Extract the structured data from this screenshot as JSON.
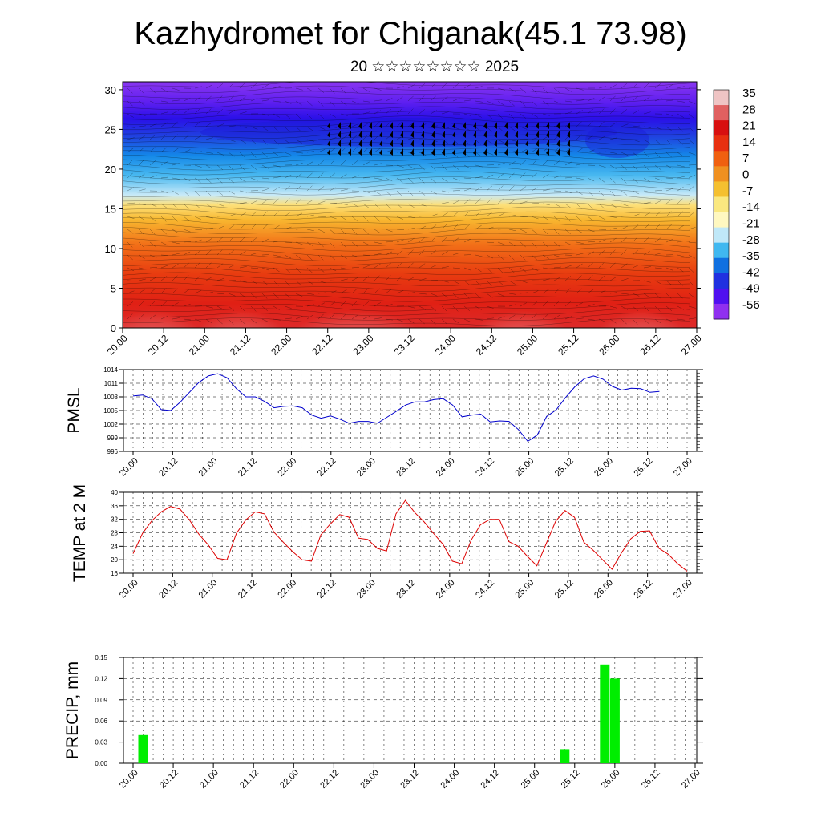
{
  "title": "Kazhydromet for Chiganak(45.1 73.98)",
  "subtitle": "20 ☆☆☆☆☆☆☆☆ 2025",
  "colors": {
    "pmsl_line": "#0000cc",
    "temp_line": "#dd0000",
    "precip_bar": "#00ee00",
    "colorbar": [
      "#efc4c4",
      "#e06060",
      "#d81010",
      "#e83010",
      "#f06010",
      "#f09020",
      "#f5c030",
      "#fae880",
      "#fff8c0",
      "#c0e8f8",
      "#40b8f0",
      "#1070e0",
      "#2030e0",
      "#5010f0",
      "#9030f0"
    ]
  },
  "chart_data": [
    {
      "type": "heatmap",
      "y_ticks": [
        "0",
        "5",
        "10",
        "15",
        "20",
        "25",
        "30"
      ],
      "ylim": [
        0,
        31
      ],
      "x_ticks": [
        "20.00",
        "20.12",
        "21.00",
        "21.12",
        "22.00",
        "22.12",
        "23.00",
        "23.12",
        "24.00",
        "24.12",
        "25.00",
        "25.12",
        "26.00",
        "26.12",
        "27.00"
      ],
      "colorbar_labels": [
        "35",
        "28",
        "21",
        "14",
        "7",
        "0",
        "-7",
        "-14",
        "-21",
        "-28",
        "-35",
        "-42",
        "-49",
        "-56"
      ]
    },
    {
      "type": "line",
      "ylabel": "PMSL",
      "ylim": [
        996,
        1014
      ],
      "y_ticks": [
        "996",
        "999",
        "1002",
        "1005",
        "1008",
        "1011",
        "1014"
      ],
      "x_ticks": [
        "20.00",
        "20.12",
        "21.00",
        "21.12",
        "22.00",
        "22.12",
        "23.00",
        "23.12",
        "24.00",
        "24.12",
        "25.00",
        "25.12",
        "26.00",
        "26.12",
        "27.00"
      ],
      "values": [
        1008.2,
        1008.4,
        1007.6,
        1005.2,
        1005.0,
        1006.8,
        1009.0,
        1011.2,
        1012.6,
        1013.1,
        1012.2,
        1009.8,
        1008.0,
        1008.0,
        1007.0,
        1005.6,
        1005.9,
        1006.0,
        1005.6,
        1004.0,
        1003.3,
        1003.8,
        1003.1,
        1002.2,
        1002.6,
        1002.6,
        1002.2,
        1003.5,
        1004.8,
        1006.2,
        1006.9,
        1006.9,
        1007.4,
        1007.6,
        1006.2,
        1003.6,
        1004.0,
        1004.2,
        1002.5,
        1002.7,
        1002.6,
        1000.8,
        998.2,
        999.6,
        1003.7,
        1005.1,
        1007.8,
        1010.2,
        1012.0,
        1012.6,
        1011.9,
        1010.3,
        1009.5,
        1009.9,
        1009.8,
        1009.0,
        1009.2
      ]
    },
    {
      "type": "line",
      "ylabel": "TEMP at 2 M",
      "ylim": [
        16,
        40
      ],
      "y_ticks": [
        "16",
        "20",
        "24",
        "28",
        "32",
        "36",
        "40"
      ],
      "x_ticks": [
        "20.00",
        "20.12",
        "21.00",
        "21.12",
        "22.00",
        "22.12",
        "23.00",
        "23.12",
        "24.00",
        "24.12",
        "25.00",
        "25.12",
        "26.00",
        "26.12",
        "27.00"
      ],
      "values": [
        21.8,
        27.8,
        31.6,
        34.2,
        35.8,
        35.0,
        31.8,
        27.6,
        24.4,
        20.4,
        20.0,
        27.8,
        31.8,
        34.2,
        33.6,
        28.2,
        25.2,
        22.4,
        20.0,
        19.6,
        27.4,
        30.6,
        33.4,
        32.6,
        26.4,
        26.0,
        23.4,
        22.6,
        33.6,
        37.6,
        34.0,
        31.2,
        27.8,
        24.6,
        19.6,
        18.8,
        25.8,
        30.4,
        32.0,
        32.0,
        25.4,
        24.0,
        21.0,
        18.2,
        24.8,
        31.4,
        34.6,
        32.6,
        25.2,
        22.8,
        20.0,
        17.2,
        22.0,
        26.2,
        28.4,
        28.6,
        23.4,
        21.6,
        18.8,
        16.6
      ]
    },
    {
      "type": "bar",
      "ylabel": "PRECIP, mm",
      "ylim": [
        0,
        0.15
      ],
      "y_ticks": [
        "0.00",
        "0.03",
        "0.06",
        "0.09",
        "0.12",
        "0.15"
      ],
      "x_ticks": [
        "20.00",
        "20.12",
        "21.00",
        "21.12",
        "22.00",
        "22.12",
        "23.00",
        "23.12",
        "24.00",
        "24.12",
        "25.00",
        "25.12",
        "26.00",
        "26.12",
        "27.00"
      ],
      "bars": [
        {
          "time_h": 3,
          "value": 0.04
        },
        {
          "time_h": 129,
          "value": 0.02
        },
        {
          "time_h": 141,
          "value": 0.14
        },
        {
          "time_h": 144,
          "value": 0.12
        }
      ]
    }
  ]
}
